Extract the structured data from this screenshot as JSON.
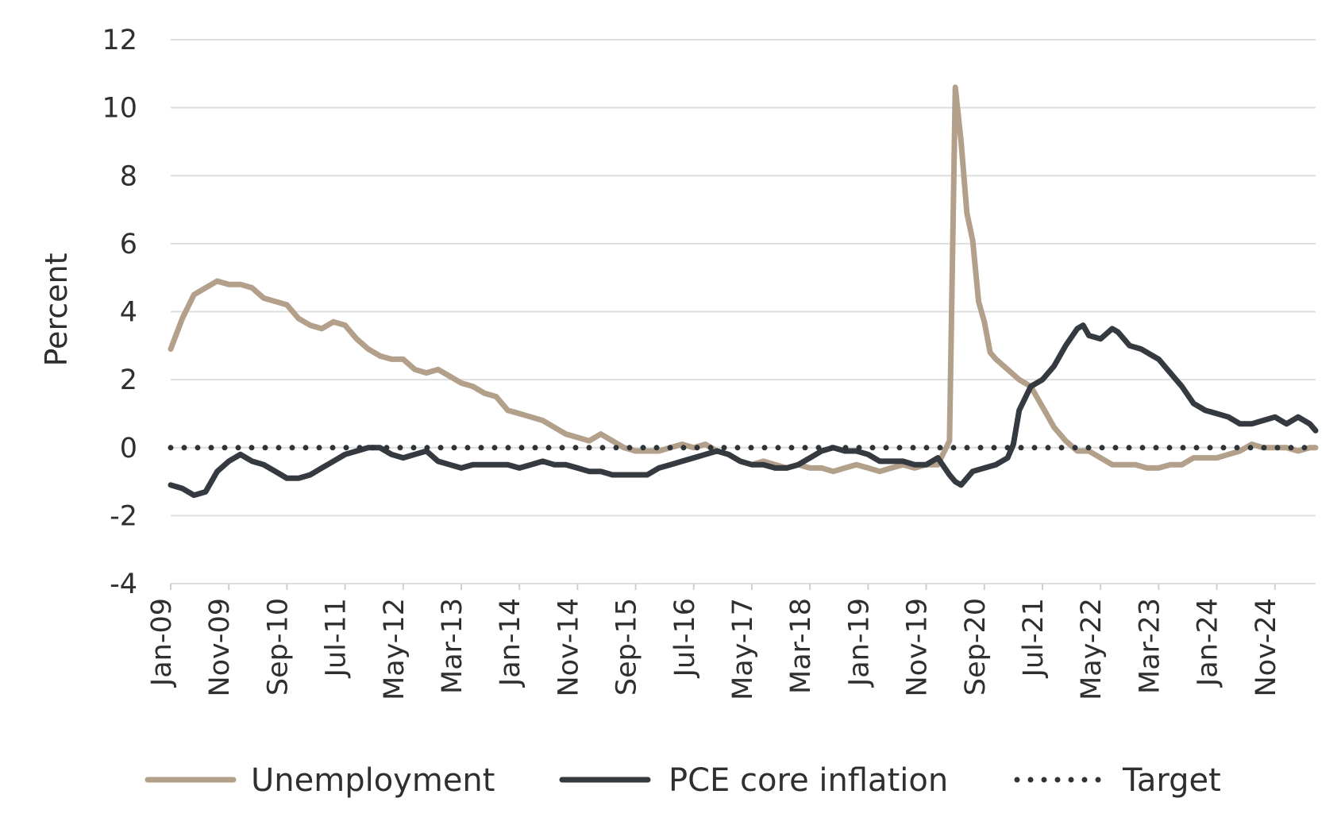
{
  "chart_data": {
    "type": "line",
    "title": "",
    "xlabel": "",
    "ylabel": "Percent",
    "ylim": [
      -4,
      12
    ],
    "y_ticks": [
      "12",
      "10",
      "8",
      "6",
      "4",
      "2",
      "0",
      "-2",
      "-4"
    ],
    "x_tick_labels": [
      "Jan-09",
      "Nov-09",
      "Sep-10",
      "Jul-11",
      "May-12",
      "Mar-13",
      "Jan-14",
      "Nov-14",
      "Sep-15",
      "Jul-16",
      "May-17",
      "Mar-18",
      "Jan-19",
      "Nov-19",
      "Sep-20",
      "Jul-21",
      "May-22",
      "Mar-23",
      "Jan-24",
      "Nov-24"
    ],
    "grid": true,
    "legend_position": "bottom",
    "series": [
      {
        "name": "Unemployment",
        "color": "#b3a08b",
        "style": "solid",
        "points": [
          [
            "Jan-09",
            2.9
          ],
          [
            "Mar-09",
            3.8
          ],
          [
            "May-09",
            4.5
          ],
          [
            "Jul-09",
            4.7
          ],
          [
            "Sep-09",
            4.9
          ],
          [
            "Nov-09",
            4.8
          ],
          [
            "Jan-10",
            4.8
          ],
          [
            "Mar-10",
            4.7
          ],
          [
            "May-10",
            4.4
          ],
          [
            "Jul-10",
            4.3
          ],
          [
            "Sep-10",
            4.2
          ],
          [
            "Nov-10",
            3.8
          ],
          [
            "Jan-11",
            3.6
          ],
          [
            "Mar-11",
            3.5
          ],
          [
            "May-11",
            3.7
          ],
          [
            "Jul-11",
            3.6
          ],
          [
            "Sep-11",
            3.2
          ],
          [
            "Nov-11",
            2.9
          ],
          [
            "Jan-12",
            2.7
          ],
          [
            "Mar-12",
            2.6
          ],
          [
            "May-12",
            2.6
          ],
          [
            "Jul-12",
            2.3
          ],
          [
            "Sep-12",
            2.2
          ],
          [
            "Nov-12",
            2.3
          ],
          [
            "Jan-13",
            2.1
          ],
          [
            "Mar-13",
            1.9
          ],
          [
            "May-13",
            1.8
          ],
          [
            "Jul-13",
            1.6
          ],
          [
            "Sep-13",
            1.5
          ],
          [
            "Nov-13",
            1.1
          ],
          [
            "Jan-14",
            1.0
          ],
          [
            "Mar-14",
            0.9
          ],
          [
            "May-14",
            0.8
          ],
          [
            "Jul-14",
            0.6
          ],
          [
            "Sep-14",
            0.4
          ],
          [
            "Nov-14",
            0.3
          ],
          [
            "Jan-15",
            0.2
          ],
          [
            "Mar-15",
            0.4
          ],
          [
            "May-15",
            0.2
          ],
          [
            "Jul-15",
            0.0
          ],
          [
            "Sep-15",
            -0.1
          ],
          [
            "Nov-15",
            -0.1
          ],
          [
            "Jan-16",
            -0.1
          ],
          [
            "Mar-16",
            0.0
          ],
          [
            "May-16",
            0.1
          ],
          [
            "Jul-16",
            0.0
          ],
          [
            "Sep-16",
            0.1
          ],
          [
            "Nov-16",
            -0.1
          ],
          [
            "Jan-17",
            -0.2
          ],
          [
            "Mar-17",
            -0.4
          ],
          [
            "May-17",
            -0.5
          ],
          [
            "Jul-17",
            -0.4
          ],
          [
            "Sep-17",
            -0.5
          ],
          [
            "Nov-17",
            -0.6
          ],
          [
            "Jan-18",
            -0.5
          ],
          [
            "Mar-18",
            -0.6
          ],
          [
            "May-18",
            -0.6
          ],
          [
            "Jul-18",
            -0.7
          ],
          [
            "Sep-18",
            -0.6
          ],
          [
            "Nov-18",
            -0.5
          ],
          [
            "Jan-19",
            -0.6
          ],
          [
            "Mar-19",
            -0.7
          ],
          [
            "May-19",
            -0.6
          ],
          [
            "Jul-19",
            -0.5
          ],
          [
            "Sep-19",
            -0.6
          ],
          [
            "Nov-19",
            -0.5
          ],
          [
            "Jan-20",
            -0.5
          ],
          [
            "Mar-20",
            0.2
          ],
          [
            "Apr-20",
            10.6
          ],
          [
            "May-20",
            9.0
          ],
          [
            "Jun-20",
            6.9
          ],
          [
            "Jul-20",
            6.1
          ],
          [
            "Aug-20",
            4.3
          ],
          [
            "Sep-20",
            3.7
          ],
          [
            "Oct-20",
            2.8
          ],
          [
            "Nov-20",
            2.6
          ],
          [
            "Jan-21",
            2.3
          ],
          [
            "Mar-21",
            2.0
          ],
          [
            "May-21",
            1.8
          ],
          [
            "Jul-21",
            1.2
          ],
          [
            "Sep-21",
            0.6
          ],
          [
            "Nov-21",
            0.2
          ],
          [
            "Jan-22",
            -0.1
          ],
          [
            "Mar-22",
            -0.1
          ],
          [
            "May-22",
            -0.3
          ],
          [
            "Jul-22",
            -0.5
          ],
          [
            "Sep-22",
            -0.5
          ],
          [
            "Nov-22",
            -0.5
          ],
          [
            "Jan-23",
            -0.6
          ],
          [
            "Mar-23",
            -0.6
          ],
          [
            "May-23",
            -0.5
          ],
          [
            "Jul-23",
            -0.5
          ],
          [
            "Sep-23",
            -0.3
          ],
          [
            "Nov-23",
            -0.3
          ],
          [
            "Jan-24",
            -0.3
          ],
          [
            "Mar-24",
            -0.2
          ],
          [
            "May-24",
            -0.1
          ],
          [
            "Jul-24",
            0.1
          ],
          [
            "Sep-24",
            0.0
          ],
          [
            "Nov-24",
            0.0
          ],
          [
            "Jan-25",
            0.0
          ],
          [
            "Mar-25",
            -0.1
          ],
          [
            "May-25",
            0.0
          ],
          [
            "Jun-25",
            0.0
          ]
        ]
      },
      {
        "name": "PCE core inflation",
        "color": "#343a40",
        "style": "solid",
        "points": [
          [
            "Jan-09",
            -1.1
          ],
          [
            "Mar-09",
            -1.2
          ],
          [
            "May-09",
            -1.4
          ],
          [
            "Jul-09",
            -1.3
          ],
          [
            "Sep-09",
            -0.7
          ],
          [
            "Nov-09",
            -0.4
          ],
          [
            "Jan-10",
            -0.2
          ],
          [
            "Mar-10",
            -0.4
          ],
          [
            "May-10",
            -0.5
          ],
          [
            "Jul-10",
            -0.7
          ],
          [
            "Sep-10",
            -0.9
          ],
          [
            "Nov-10",
            -0.9
          ],
          [
            "Jan-11",
            -0.8
          ],
          [
            "Mar-11",
            -0.6
          ],
          [
            "May-11",
            -0.4
          ],
          [
            "Jul-11",
            -0.2
          ],
          [
            "Sep-11",
            -0.1
          ],
          [
            "Nov-11",
            0.0
          ],
          [
            "Jan-12",
            0.0
          ],
          [
            "Mar-12",
            -0.2
          ],
          [
            "May-12",
            -0.3
          ],
          [
            "Jul-12",
            -0.2
          ],
          [
            "Sep-12",
            -0.1
          ],
          [
            "Nov-12",
            -0.4
          ],
          [
            "Jan-13",
            -0.5
          ],
          [
            "Mar-13",
            -0.6
          ],
          [
            "May-13",
            -0.5
          ],
          [
            "Jul-13",
            -0.5
          ],
          [
            "Sep-13",
            -0.5
          ],
          [
            "Nov-13",
            -0.5
          ],
          [
            "Jan-14",
            -0.6
          ],
          [
            "Mar-14",
            -0.5
          ],
          [
            "May-14",
            -0.4
          ],
          [
            "Jul-14",
            -0.5
          ],
          [
            "Sep-14",
            -0.5
          ],
          [
            "Nov-14",
            -0.6
          ],
          [
            "Jan-15",
            -0.7
          ],
          [
            "Mar-15",
            -0.7
          ],
          [
            "May-15",
            -0.8
          ],
          [
            "Jul-15",
            -0.8
          ],
          [
            "Sep-15",
            -0.8
          ],
          [
            "Nov-15",
            -0.8
          ],
          [
            "Jan-16",
            -0.6
          ],
          [
            "Mar-16",
            -0.5
          ],
          [
            "May-16",
            -0.4
          ],
          [
            "Jul-16",
            -0.3
          ],
          [
            "Sep-16",
            -0.2
          ],
          [
            "Nov-16",
            -0.1
          ],
          [
            "Jan-17",
            -0.2
          ],
          [
            "Mar-17",
            -0.4
          ],
          [
            "May-17",
            -0.5
          ],
          [
            "Jul-17",
            -0.5
          ],
          [
            "Sep-17",
            -0.6
          ],
          [
            "Nov-17",
            -0.6
          ],
          [
            "Jan-18",
            -0.5
          ],
          [
            "Mar-18",
            -0.3
          ],
          [
            "May-18",
            -0.1
          ],
          [
            "Jul-18",
            0.0
          ],
          [
            "Sep-18",
            -0.1
          ],
          [
            "Nov-18",
            -0.1
          ],
          [
            "Jan-19",
            -0.2
          ],
          [
            "Mar-19",
            -0.4
          ],
          [
            "May-19",
            -0.4
          ],
          [
            "Jul-19",
            -0.4
          ],
          [
            "Sep-19",
            -0.5
          ],
          [
            "Nov-19",
            -0.5
          ],
          [
            "Jan-20",
            -0.3
          ],
          [
            "Mar-20",
            -0.8
          ],
          [
            "Apr-20",
            -1.0
          ],
          [
            "May-20",
            -1.1
          ],
          [
            "Jul-20",
            -0.7
          ],
          [
            "Sep-20",
            -0.6
          ],
          [
            "Nov-20",
            -0.5
          ],
          [
            "Jan-21",
            -0.3
          ],
          [
            "Feb-21",
            0.1
          ],
          [
            "Mar-21",
            1.1
          ],
          [
            "May-21",
            1.8
          ],
          [
            "Jul-21",
            2.0
          ],
          [
            "Sep-21",
            2.4
          ],
          [
            "Nov-21",
            3.0
          ],
          [
            "Jan-22",
            3.5
          ],
          [
            "Feb-22",
            3.6
          ],
          [
            "Mar-22",
            3.3
          ],
          [
            "May-22",
            3.2
          ],
          [
            "Jul-22",
            3.5
          ],
          [
            "Aug-22",
            3.4
          ],
          [
            "Oct-22",
            3.0
          ],
          [
            "Dec-22",
            2.9
          ],
          [
            "Feb-23",
            2.7
          ],
          [
            "Mar-23",
            2.6
          ],
          [
            "May-23",
            2.2
          ],
          [
            "Jul-23",
            1.8
          ],
          [
            "Sep-23",
            1.3
          ],
          [
            "Nov-23",
            1.1
          ],
          [
            "Jan-24",
            1.0
          ],
          [
            "Mar-24",
            0.9
          ],
          [
            "May-24",
            0.7
          ],
          [
            "Jul-24",
            0.7
          ],
          [
            "Sep-24",
            0.8
          ],
          [
            "Nov-24",
            0.9
          ],
          [
            "Jan-25",
            0.7
          ],
          [
            "Mar-25",
            0.9
          ],
          [
            "May-25",
            0.7
          ],
          [
            "Jun-25",
            0.5
          ]
        ]
      },
      {
        "name": "Target",
        "color": "#2f3438",
        "style": "dotted",
        "points": [
          [
            "Jan-09",
            0
          ],
          [
            "Jun-25",
            0
          ]
        ]
      }
    ]
  }
}
